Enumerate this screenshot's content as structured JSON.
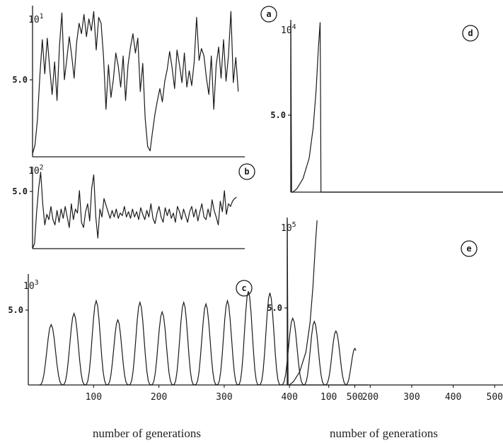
{
  "figure": {
    "left_xlabel": "number of generations",
    "right_xlabel": "number of generations"
  },
  "chart_data": [
    {
      "id": "a",
      "type": "line",
      "label": "a",
      "scale_label": "10^1",
      "scale_base": "10",
      "scale_exp": "1",
      "yticks": [
        "5.0"
      ],
      "ylim": [
        0,
        10
      ],
      "xlim": [
        0,
        520
      ],
      "series": [
        {
          "x": [
            0,
            6,
            12,
            18,
            24,
            30,
            36,
            42,
            48,
            54,
            60,
            66,
            72,
            78,
            84,
            90,
            96,
            102,
            108,
            114,
            120,
            126,
            132,
            138,
            144,
            150,
            156,
            162,
            168,
            174,
            180,
            186,
            192,
            198,
            204,
            210,
            216,
            222,
            228,
            234,
            240,
            246,
            252,
            258,
            264,
            270,
            276,
            282,
            288,
            294,
            300,
            306,
            312,
            318,
            324,
            330,
            336,
            342,
            348,
            354,
            360,
            366,
            372,
            378,
            384,
            390,
            396,
            402,
            408,
            414,
            420,
            426,
            432,
            438,
            444,
            450,
            456,
            462,
            468,
            474,
            480,
            486,
            492,
            498,
            504
          ],
          "y": [
            0.2,
            0.8,
            2.5,
            5.5,
            7.9,
            5.6,
            8.0,
            6.0,
            4.2,
            6.4,
            3.8,
            7.5,
            9.7,
            5.2,
            6.6,
            8.1,
            6.8,
            5.3,
            7.7,
            9.0,
            8.3,
            9.6,
            8.1,
            9.3,
            8.5,
            9.8,
            7.2,
            9.4,
            9.0,
            6.7,
            3.2,
            6.2,
            4.0,
            5.2,
            7.0,
            6.1,
            4.7,
            6.8,
            3.8,
            6.2,
            7.4,
            8.3,
            7.0,
            8.0,
            4.4,
            6.3,
            2.6,
            0.7,
            0.4,
            1.7,
            2.9,
            3.8,
            4.6,
            3.7,
            5.1,
            5.9,
            7.1,
            6.0,
            4.6,
            7.2,
            6.2,
            5.0,
            7.0,
            4.7,
            5.8,
            4.8,
            6.4,
            9.4,
            6.5,
            7.3,
            6.8,
            5.3,
            4.2,
            6.8,
            3.2,
            6.2,
            7.4,
            5.3,
            7.9,
            5.1,
            6.8,
            9.8,
            5.0,
            6.7,
            4.4
          ]
        }
      ]
    },
    {
      "id": "b",
      "type": "line",
      "label": "b",
      "scale_label": "10^2",
      "scale_base": "10",
      "scale_exp": "2",
      "yticks": [
        "5.0"
      ],
      "ylim": [
        0,
        6
      ],
      "xlim": [
        0,
        520
      ],
      "series": [
        {
          "x": [
            0,
            5,
            10,
            15,
            20,
            25,
            30,
            35,
            40,
            45,
            50,
            55,
            60,
            65,
            70,
            75,
            80,
            85,
            90,
            95,
            100,
            105,
            110,
            115,
            120,
            125,
            130,
            135,
            140,
            145,
            150,
            155,
            160,
            165,
            170,
            175,
            180,
            185,
            190,
            195,
            200,
            205,
            210,
            215,
            220,
            225,
            230,
            235,
            240,
            245,
            250,
            255,
            260,
            265,
            270,
            275,
            280,
            285,
            290,
            295,
            300,
            305,
            310,
            315,
            320,
            325,
            330,
            335,
            340,
            345,
            350,
            355,
            360,
            365,
            370,
            375,
            380,
            385,
            390,
            395,
            400,
            405,
            410,
            415,
            420,
            425,
            430,
            435,
            440,
            445,
            450,
            455,
            460,
            465,
            470,
            475,
            480,
            485,
            490,
            495,
            500
          ],
          "y": [
            0.0,
            0.4,
            2.8,
            4.6,
            5.8,
            3.4,
            1.8,
            2.6,
            2.2,
            3.2,
            2.2,
            1.8,
            2.9,
            2.0,
            3.0,
            2.3,
            3.2,
            2.4,
            1.6,
            3.4,
            2.2,
            3.0,
            2.7,
            4.4,
            2.0,
            1.6,
            2.8,
            3.4,
            2.1,
            4.6,
            5.6,
            2.4,
            0.8,
            3.0,
            2.4,
            3.8,
            3.3,
            2.8,
            2.3,
            2.9,
            2.4,
            3.0,
            2.3,
            2.7,
            2.5,
            3.2,
            2.4,
            2.8,
            2.3,
            3.0,
            2.4,
            2.8,
            2.2,
            3.1,
            2.6,
            2.2,
            2.9,
            2.4,
            3.4,
            2.3,
            1.9,
            2.7,
            3.2,
            2.4,
            2.0,
            3.1,
            2.5,
            3.0,
            2.3,
            2.7,
            2.0,
            3.2,
            2.8,
            2.2,
            3.0,
            2.5,
            2.0,
            2.8,
            3.2,
            2.4,
            3.0,
            2.1,
            2.8,
            3.4,
            2.4,
            2.2,
            3.0,
            2.4,
            3.7,
            2.9,
            2.4,
            1.8,
            3.6,
            2.8,
            4.4,
            2.6,
            3.4,
            3.2,
            3.6,
            3.8,
            3.9
          ]
        }
      ]
    },
    {
      "id": "c",
      "type": "line",
      "label": "c",
      "scale_label": "10^3",
      "scale_base": "10",
      "scale_exp": "3",
      "yticks": [
        "5.0"
      ],
      "ylim": [
        0,
        6.8
      ],
      "xlim": [
        0,
        520
      ],
      "xticks": [
        "100",
        "200",
        "300",
        "400",
        "500"
      ],
      "peaks": [
        [
          35,
          3.8
        ],
        [
          70,
          4.5
        ],
        [
          104,
          5.3
        ],
        [
          137,
          4.1
        ],
        [
          171,
          5.2
        ],
        [
          205,
          4.6
        ],
        [
          238,
          5.2
        ],
        [
          272,
          5.1
        ],
        [
          305,
          5.3
        ],
        [
          337,
          5.9
        ],
        [
          370,
          5.8
        ],
        [
          405,
          4.2
        ],
        [
          438,
          4.0
        ],
        [
          471,
          3.4
        ],
        [
          500,
          2.3
        ]
      ]
    },
    {
      "id": "d",
      "type": "line",
      "label": "d",
      "scale_label": "10^4",
      "scale_base": "10",
      "scale_exp": "4",
      "yticks": [
        "5.0"
      ],
      "ylim": [
        0,
        10
      ],
      "xlim": [
        0,
        520
      ],
      "series": [
        {
          "x": [
            0,
            2,
            5,
            15,
            30,
            45,
            55,
            62,
            68,
            72,
            73,
            74,
            520
          ],
          "y": [
            10.0,
            0.0,
            0.0,
            0.2,
            0.8,
            2.0,
            3.8,
            6.0,
            8.6,
            10.0,
            6.0,
            0.0,
            0.0
          ]
        }
      ]
    },
    {
      "id": "e",
      "type": "line",
      "label": "e",
      "scale_label": "10^5",
      "scale_base": "10",
      "scale_exp": "5",
      "yticks": [
        "5.0"
      ],
      "ylim": [
        0,
        10
      ],
      "xlim": [
        0,
        520
      ],
      "xticks": [
        "100",
        "200",
        "300",
        "400",
        "500"
      ],
      "series": [
        {
          "x": [
            0,
            2,
            5,
            15,
            30,
            45,
            55,
            62,
            68,
            72
          ],
          "y": [
            10.0,
            0.0,
            0.0,
            0.2,
            0.8,
            2.0,
            3.8,
            6.0,
            8.6,
            10.0
          ]
        }
      ]
    }
  ]
}
